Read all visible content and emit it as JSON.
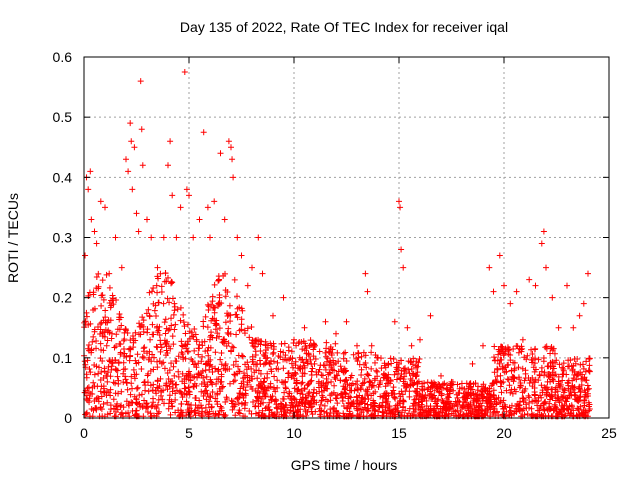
{
  "chart_data": {
    "type": "scatter",
    "title": "Day 135 of 2022, Rate Of TEC Index for receiver iqal",
    "xlabel": "GPS time / hours",
    "ylabel": "ROTI / TECUs",
    "xlim": [
      0,
      25
    ],
    "ylim": [
      0,
      0.6
    ],
    "xticks": [
      0,
      5,
      10,
      15,
      20,
      25
    ],
    "yticks": [
      0,
      0.1,
      0.2,
      0.3,
      0.4,
      0.5,
      0.6
    ],
    "xtick_labels": [
      "0",
      "5",
      "10",
      "15",
      "20",
      "25"
    ],
    "ytick_labels": [
      "0",
      "0.1",
      "0.2",
      "0.3",
      "0.4",
      "0.5",
      "0.6"
    ],
    "grid": true,
    "marker": "+",
    "color": "#ff0000",
    "series": [
      {
        "name": "ROTI",
        "points": [
          [
            0.05,
            0.27
          ],
          [
            0.12,
            0.4
          ],
          [
            0.2,
            0.38
          ],
          [
            0.3,
            0.41
          ],
          [
            0.35,
            0.33
          ],
          [
            0.5,
            0.31
          ],
          [
            0.6,
            0.29
          ],
          [
            0.8,
            0.36
          ],
          [
            1.0,
            0.35
          ],
          [
            1.2,
            0.24
          ],
          [
            1.5,
            0.3
          ],
          [
            1.8,
            0.25
          ],
          [
            2.0,
            0.43
          ],
          [
            2.1,
            0.41
          ],
          [
            2.2,
            0.49
          ],
          [
            2.25,
            0.46
          ],
          [
            2.3,
            0.38
          ],
          [
            2.4,
            0.45
          ],
          [
            2.5,
            0.34
          ],
          [
            2.6,
            0.31
          ],
          [
            2.7,
            0.56
          ],
          [
            2.75,
            0.48
          ],
          [
            2.8,
            0.42
          ],
          [
            3.0,
            0.33
          ],
          [
            3.2,
            0.3
          ],
          [
            3.5,
            0.25
          ],
          [
            3.8,
            0.3
          ],
          [
            4.0,
            0.42
          ],
          [
            4.1,
            0.46
          ],
          [
            4.2,
            0.37
          ],
          [
            4.4,
            0.3
          ],
          [
            4.6,
            0.35
          ],
          [
            4.8,
            0.575
          ],
          [
            4.9,
            0.38
          ],
          [
            5.0,
            0.37
          ],
          [
            5.2,
            0.3
          ],
          [
            5.5,
            0.33
          ],
          [
            5.7,
            0.475
          ],
          [
            5.9,
            0.35
          ],
          [
            6.0,
            0.3
          ],
          [
            6.2,
            0.36
          ],
          [
            6.5,
            0.44
          ],
          [
            6.7,
            0.33
          ],
          [
            6.9,
            0.46
          ],
          [
            7.0,
            0.45
          ],
          [
            7.05,
            0.43
          ],
          [
            7.1,
            0.4
          ],
          [
            7.3,
            0.3
          ],
          [
            7.5,
            0.27
          ],
          [
            7.8,
            0.22
          ],
          [
            8.0,
            0.25
          ],
          [
            8.3,
            0.3
          ],
          [
            8.5,
            0.24
          ],
          [
            9.0,
            0.17
          ],
          [
            9.5,
            0.2
          ],
          [
            10.0,
            0.13
          ],
          [
            10.5,
            0.15
          ],
          [
            11.0,
            0.12
          ],
          [
            11.5,
            0.16
          ],
          [
            12.0,
            0.14
          ],
          [
            12.5,
            0.16
          ],
          [
            13.0,
            0.12
          ],
          [
            13.4,
            0.24
          ],
          [
            13.5,
            0.21
          ],
          [
            13.7,
            0.12
          ],
          [
            14.0,
            0.1
          ],
          [
            14.5,
            0.09
          ],
          [
            14.8,
            0.16
          ],
          [
            15.0,
            0.36
          ],
          [
            15.05,
            0.35
          ],
          [
            15.1,
            0.28
          ],
          [
            15.2,
            0.25
          ],
          [
            15.4,
            0.15
          ],
          [
            15.6,
            0.12
          ],
          [
            16.0,
            0.13
          ],
          [
            16.5,
            0.17
          ],
          [
            17.0,
            0.07
          ],
          [
            17.5,
            0.06
          ],
          [
            18.0,
            0.05
          ],
          [
            18.5,
            0.09
          ],
          [
            19.0,
            0.12
          ],
          [
            19.3,
            0.25
          ],
          [
            19.5,
            0.21
          ],
          [
            19.8,
            0.27
          ],
          [
            20.0,
            0.22
          ],
          [
            20.3,
            0.19
          ],
          [
            20.6,
            0.21
          ],
          [
            20.9,
            0.13
          ],
          [
            21.2,
            0.23
          ],
          [
            21.5,
            0.22
          ],
          [
            21.8,
            0.29
          ],
          [
            21.9,
            0.31
          ],
          [
            22.0,
            0.25
          ],
          [
            22.3,
            0.2
          ],
          [
            22.6,
            0.15
          ],
          [
            23.0,
            0.22
          ],
          [
            23.3,
            0.15
          ],
          [
            23.6,
            0.17
          ],
          [
            23.8,
            0.19
          ],
          [
            24.0,
            0.24
          ],
          [
            0.4,
            0.05
          ],
          [
            1.3,
            0.08
          ],
          [
            2.9,
            0.06
          ],
          [
            4.3,
            0.07
          ],
          [
            5.8,
            0.09
          ],
          [
            7.6,
            0.06
          ],
          [
            9.2,
            0.05
          ],
          [
            11.8,
            0.04
          ],
          [
            13.2,
            0.03
          ],
          [
            16.8,
            0.02
          ],
          [
            18.7,
            0.01
          ],
          [
            21.0,
            0.03
          ],
          [
            22.8,
            0.02
          ],
          [
            23.9,
            0.01
          ]
        ]
      }
    ]
  }
}
